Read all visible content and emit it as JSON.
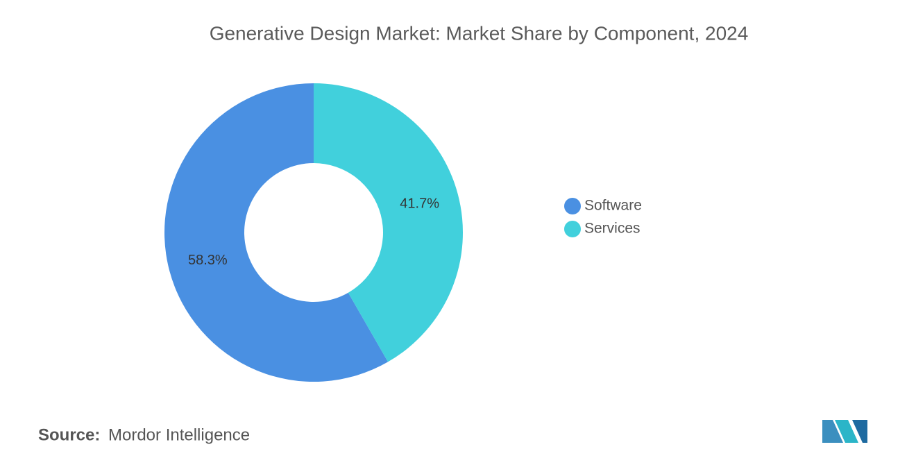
{
  "chart_data": {
    "type": "donut",
    "title": "Generative Design Market: Market Share by Component, 2024",
    "categories": [
      "Software",
      "Services"
    ],
    "values": [
      58.3,
      41.7
    ],
    "value_labels": [
      "58.3%",
      "41.7%"
    ],
    "colors": [
      "#4a90e2",
      "#41d0dc"
    ],
    "legend": "right"
  },
  "footer": {
    "source_label": "Source:",
    "source": "Mordor Intelligence"
  }
}
